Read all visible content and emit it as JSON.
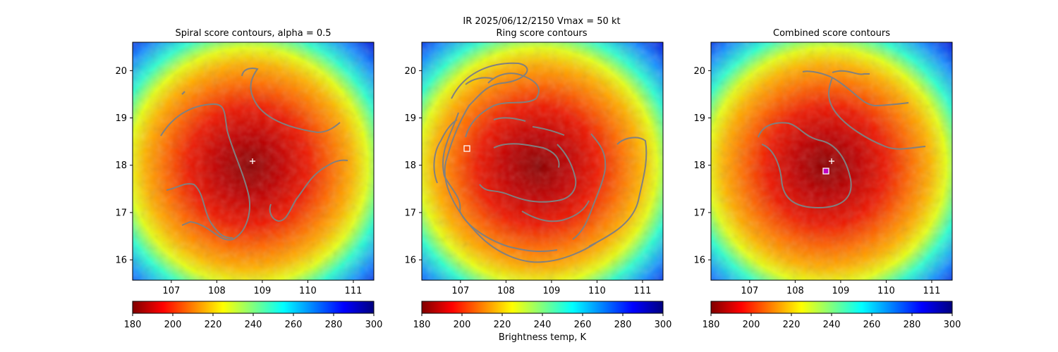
{
  "suptitle": {
    "line1": "IR  2025/06/12/2150    Vmax = 50 kt",
    "line2": "Ring score contours"
  },
  "panels": [
    {
      "id": "spiral",
      "title": "Spiral score contours, alpha =  0.5"
    },
    {
      "id": "ring",
      "title": ""
    },
    {
      "id": "combined",
      "title": "Combined score contours"
    }
  ],
  "colorbar": {
    "label": "Brightness temp, K",
    "ticks": [
      "180",
      "200",
      "220",
      "240",
      "260",
      "280",
      "300"
    ]
  },
  "chart_data": {
    "type": "heatmap",
    "colormap": "jet_r",
    "colorbar_range": [
      180,
      300
    ],
    "x_ticks": [
      107,
      108,
      109,
      110,
      111
    ],
    "y_ticks": [
      16,
      17,
      18,
      19,
      20
    ],
    "xlim": [
      106.15,
      111.45
    ],
    "ylim": [
      15.57,
      20.6
    ],
    "storm_center_marker": {
      "lon": 108.72,
      "lat": 18.07,
      "symbol": "+"
    },
    "ring_best_marker": {
      "lon": 107.08,
      "lat": 18.33,
      "symbol": "square"
    },
    "combined_best_marker": {
      "lon": 108.6,
      "lat": 17.85,
      "symbol": "square"
    },
    "contour_color": "#808080"
  }
}
